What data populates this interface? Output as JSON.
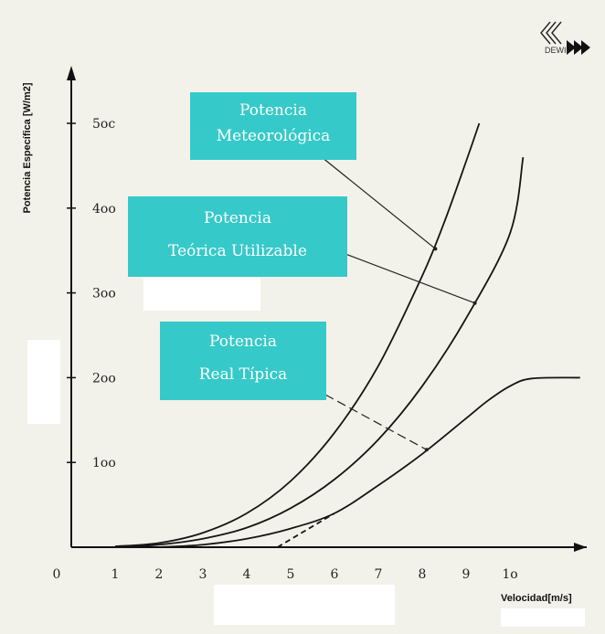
{
  "logo": {
    "text": "DEWI"
  },
  "chart_data": {
    "type": "line",
    "title": "",
    "xlabel": "Velocidad[m/s]",
    "ylabel": "Potencia Específica [W/m2]",
    "xlim": [
      0,
      11.6
    ],
    "ylim": [
      0,
      550
    ],
    "x_ticks": [
      0,
      1,
      2,
      3,
      4,
      5,
      6,
      7,
      8,
      9,
      10
    ],
    "x_tick_labels": [
      "0",
      "1",
      "2",
      "3",
      "4",
      "5",
      "6",
      "7",
      "8",
      "9",
      "1o"
    ],
    "y_ticks": [
      100,
      200,
      300,
      400,
      500
    ],
    "y_tick_labels": [
      "1oo",
      "2oo",
      "3oo",
      "4oo",
      "5oc"
    ],
    "grid": false,
    "legend": "none",
    "series": [
      {
        "name": "Potencia Meteorológica",
        "x": [
          1,
          2,
          3,
          4,
          5,
          6,
          7,
          8,
          8.5,
          9,
          9.3
        ],
        "y": [
          1,
          5,
          17,
          40,
          78,
          135,
          214,
          320,
          383,
          455,
          500
        ]
      },
      {
        "name": "Potencia Teórica Utilizable",
        "x": [
          1,
          2,
          3,
          4,
          5,
          6,
          7,
          8,
          9,
          10,
          10.3
        ],
        "y": [
          0,
          3,
          10,
          23,
          46,
          80,
          127,
          190,
          270,
          370,
          460
        ]
      },
      {
        "name": "Potencia Real Típica",
        "x": [
          2,
          3,
          4,
          5,
          6,
          7,
          8,
          9,
          9.5,
          10,
          10.5,
          11.6
        ],
        "y": [
          0,
          3,
          10,
          22,
          40,
          73,
          110,
          152,
          173,
          190,
          199,
          200
        ]
      },
      {
        "name": "",
        "style": "dashed",
        "x": [
          4.7,
          6
        ],
        "y": [
          0,
          40
        ]
      }
    ],
    "annotations": [
      {
        "label": "Potencia Meteorológica",
        "lines": [
          "Potencia",
          "Meteorológica"
        ],
        "target_series": 0,
        "target": [
          8.3,
          352
        ]
      },
      {
        "label": "Potencia Teórica Utilizable",
        "lines": [
          "Potencia",
          "Teórica Utilizable"
        ],
        "target_series": 1,
        "target": [
          9.2,
          288
        ]
      },
      {
        "label": "Potencia Real Típica",
        "lines": [
          "Potencia",
          "Real Típica"
        ],
        "target_series": 2,
        "target": [
          8.1,
          115
        ]
      }
    ]
  }
}
